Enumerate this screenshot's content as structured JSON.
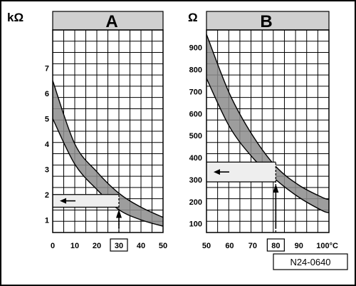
{
  "figure_code": "N24-0640",
  "chart_data": [
    {
      "type": "area",
      "title": "A",
      "ylabel": "kΩ",
      "xlabel": "",
      "xlim": [
        0,
        50
      ],
      "ylim": [
        0.5,
        8.5
      ],
      "x_ticks": [
        "0",
        "10",
        "20",
        "30",
        "40",
        "50"
      ],
      "y_ticks": [
        "1",
        "2",
        "3",
        "4",
        "5",
        "6",
        "7"
      ],
      "grid": true,
      "band": {
        "x": [
          0,
          10,
          20,
          30,
          40,
          50
        ],
        "upper": [
          6.5,
          4.0,
          2.9,
          2.05,
          1.5,
          1.1
        ],
        "lower": [
          5.0,
          3.2,
          2.2,
          1.4,
          1.0,
          0.75
        ]
      },
      "reading": {
        "x": 30,
        "x_label": "30",
        "y_low": 1.5,
        "y_high": 2.0
      }
    },
    {
      "type": "area",
      "title": "B",
      "ylabel": "Ω",
      "xlabel": "",
      "xlim": [
        50,
        103
      ],
      "ylim": [
        60,
        980
      ],
      "x_ticks": [
        "50",
        "60",
        "70",
        "80",
        "90",
        "100°C"
      ],
      "y_ticks": [
        "100",
        "200",
        "300",
        "400",
        "500",
        "600",
        "700",
        "800",
        "900"
      ],
      "grid": true,
      "band": {
        "x": [
          50,
          60,
          70,
          80,
          90,
          100,
          103
        ],
        "upper": [
          960,
          690,
          500,
          360,
          275,
          220,
          210
        ],
        "lower": [
          760,
          540,
          400,
          300,
          220,
          160,
          150
        ]
      },
      "reading": {
        "x": 80,
        "x_label": "80",
        "y_low": 290,
        "y_high": 380
      }
    }
  ]
}
